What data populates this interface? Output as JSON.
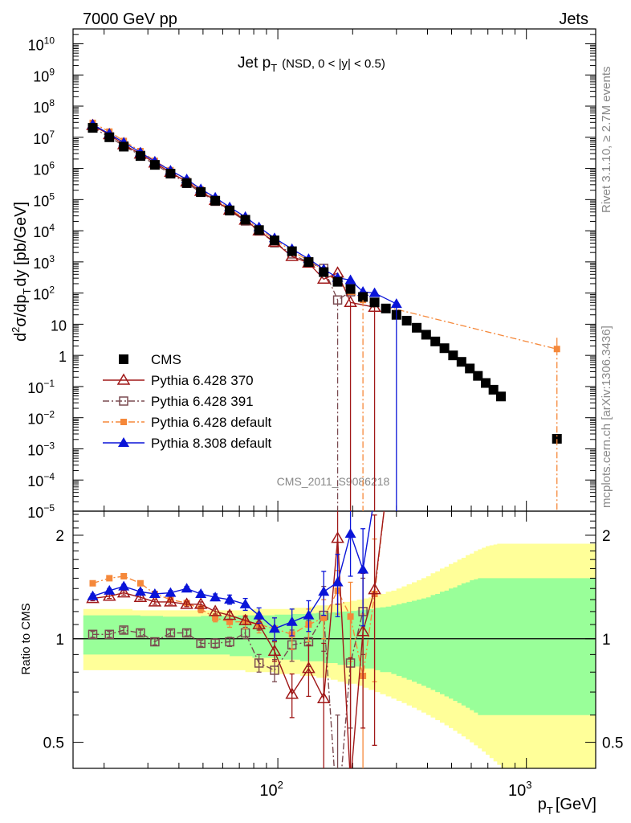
{
  "header": {
    "left": "7000 GeV pp",
    "right": "Jets"
  },
  "side_labels": {
    "rivet": "Rivet 3.1.10, ≥ 2.7M events",
    "mcplots": "mcplots.cern.ch [arXiv:1306.3436]"
  },
  "colors": {
    "cms": "#000000",
    "py370": "#a01818",
    "py391": "#7a4a50",
    "pydef": "#f5883a",
    "py8": "#0a14d8",
    "band_inner": "#99ff99",
    "band_outer": "#ffff99"
  },
  "chart_data": [
    {
      "type": "line",
      "name": "main",
      "title": "Jet p_T (NSD, 0 < |y| < 0.5)",
      "title_main": "Jet p",
      "title_sub": "T",
      "title_extra": "(NSD,   0 < |y| < 0.5)",
      "ylabel": "d²σ/dp_T dy [pb/GeV]",
      "xscale": "log",
      "yscale": "log",
      "xlim": [
        15,
        1900
      ],
      "ylim": [
        1e-05,
        30000000000.0
      ],
      "yticks": [
        {
          "v": 10000000000.0,
          "m": "10",
          "e": "10"
        },
        {
          "v": 1000000000.0,
          "m": "10",
          "e": "9"
        },
        {
          "v": 100000000.0,
          "m": "10",
          "e": "8"
        },
        {
          "v": 10000000.0,
          "m": "10",
          "e": "7"
        },
        {
          "v": 1000000.0,
          "m": "10",
          "e": "6"
        },
        {
          "v": 100000.0,
          "m": "10",
          "e": "5"
        },
        {
          "v": 10000.0,
          "m": "10",
          "e": "4"
        },
        {
          "v": 1000.0,
          "m": "10",
          "e": "3"
        },
        {
          "v": 100,
          "m": "10",
          "e": "2"
        },
        {
          "v": 10,
          "m": "10",
          "e": ""
        },
        {
          "v": 1,
          "m": "1",
          "e": ""
        },
        {
          "v": 0.1,
          "m": "10",
          "e": "−1"
        },
        {
          "v": 0.01,
          "m": "10",
          "e": "−2"
        },
        {
          "v": 0.001,
          "m": "10",
          "e": "−3"
        },
        {
          "v": 0.0001,
          "m": "10",
          "e": "−4"
        },
        {
          "v": 1e-05,
          "m": "10",
          "e": "−5"
        }
      ],
      "watermark": "CMS_2011_S9086218",
      "legend_position": "bottom-left",
      "series": [
        {
          "name": "CMS",
          "key": "cms",
          "marker": "square-filled",
          "x": [
            18,
            21,
            24,
            28,
            32,
            37,
            43,
            49,
            56,
            64,
            74,
            84,
            97,
            114,
            133,
            153,
            174,
            196,
            220,
            245,
            272,
            300,
            330,
            362,
            395,
            430,
            468,
            507,
            548,
            592,
            638,
            686,
            737,
            790,
            1327
          ],
          "y": [
            20000000.0,
            10000000.0,
            5000000.0,
            2500000.0,
            1300000.0,
            680000.0,
            340000.0,
            175000.0,
            92000.0,
            45000.0,
            22500.0,
            10500.0,
            4900.0,
            2200.0,
            990,
            470,
            230,
            135,
            75,
            50,
            32,
            20,
            13,
            7.7,
            4.6,
            2.8,
            1.7,
            1.0,
            0.62,
            0.38,
            0.22,
            0.13,
            0.079,
            0.048,
            0.0021
          ]
        },
        {
          "name": "Pythia 6.428 370",
          "key": "py370",
          "marker": "triangle-open",
          "dash": "",
          "x": [
            18,
            21,
            24,
            28,
            32,
            37,
            43,
            49,
            56,
            64,
            74,
            84,
            97,
            114,
            133,
            153,
            174,
            196,
            220,
            245
          ],
          "y": [
            24000000.0,
            12200000.0,
            5800000.0,
            2900000.0,
            1500000.0,
            750000.0,
            370000.0,
            185000.0,
            94000.0,
            46000.0,
            22000.0,
            10000.0,
            4300.0,
            1500.0,
            920,
            280,
            440,
            50,
            null,
            35
          ]
        },
        {
          "name": "Pythia 6.428 391",
          "key": "py391",
          "marker": "square-open",
          "dash": "8,3,2,3",
          "x": [
            18,
            21,
            24,
            28,
            32,
            37,
            43,
            49,
            56,
            64,
            74,
            84,
            97,
            114,
            133,
            153,
            174,
            196,
            220,
            245
          ],
          "y": [
            20500000.0,
            10200000.0,
            5300000.0,
            2650000.0,
            1300000.0,
            690000.0,
            330000.0,
            170000.0,
            88000.0,
            43500.0,
            20500.0,
            9800.0,
            4100.0,
            1800.0,
            950,
            620,
            60,
            110,
            null,
            null
          ]
        },
        {
          "name": "Pythia 6.428 default",
          "key": "pydef",
          "marker": "square-filled-small",
          "dash": "8,3,2,3",
          "x": [
            18,
            21,
            24,
            28,
            32,
            37,
            43,
            49,
            56,
            64,
            74,
            84,
            97,
            114,
            133,
            153,
            174,
            196,
            220,
            245,
            1327
          ],
          "y": [
            29000000.0,
            15200000.0,
            7600000.0,
            3600000.0,
            1750000.0,
            880000.0,
            420000.0,
            210000.0,
            105000.0,
            50000.0,
            24000.0,
            11500.0,
            5200.0,
            2250.0,
            1100.0,
            540,
            220,
            110,
            60,
            45,
            1.6
          ]
        },
        {
          "name": "Pythia 8.308 default",
          "key": "py8",
          "marker": "triangle-filled",
          "dash": "",
          "x": [
            18,
            21,
            24,
            28,
            32,
            37,
            43,
            49,
            56,
            64,
            74,
            84,
            97,
            114,
            133,
            153,
            174,
            196,
            220,
            245,
            300
          ],
          "y": [
            25500000.0,
            13000000.0,
            6800000.0,
            3300000.0,
            1670000.0,
            860000.0,
            450000.0,
            217000.0,
            117000.0,
            57000.0,
            28000.0,
            13000.0,
            5800.0,
            2600.0,
            1250.0,
            580,
            310,
            260,
            110,
            100,
            45
          ]
        }
      ]
    },
    {
      "type": "line",
      "name": "ratio",
      "ylabel": "Ratio to CMS",
      "xlabel": "p_T [GeV]",
      "xscale": "log",
      "yscale": "log",
      "xlim": [
        15,
        1900
      ],
      "ylim": [
        0.42,
        2.35
      ],
      "xticks": [
        {
          "v": 100,
          "m": "10",
          "e": "2"
        },
        {
          "v": 1000,
          "m": "10",
          "e": "3"
        }
      ],
      "yticks": [
        {
          "v": 0.5,
          "label": "0.5"
        },
        {
          "v": 1,
          "label": "1"
        },
        {
          "v": 2,
          "label": "2"
        }
      ],
      "band": {
        "edges": [
          16.5,
          18,
          19.5,
          21,
          22.5,
          24,
          26,
          28,
          30,
          32,
          34.5,
          37,
          40,
          43,
          46,
          49,
          52.5,
          56,
          60,
          64,
          69,
          74,
          79,
          84,
          90,
          97,
          105,
          114,
          123,
          133,
          143,
          153,
          163,
          174,
          185,
          196,
          208,
          220,
          232,
          245,
          258,
          272,
          286,
          300,
          315,
          330,
          346,
          362,
          378,
          395,
          412,
          430,
          449,
          468,
          487,
          507,
          527,
          548,
          570,
          592,
          615,
          638,
          662,
          686,
          711,
          737,
          763,
          790,
          950,
          1900
        ],
        "inner_up": [
          1.17,
          1.17,
          1.17,
          1.17,
          1.17,
          1.17,
          1.17,
          1.165,
          1.165,
          1.165,
          1.16,
          1.16,
          1.16,
          1.16,
          1.16,
          1.165,
          1.165,
          1.165,
          1.165,
          1.165,
          1.17,
          1.17,
          1.17,
          1.17,
          1.17,
          1.175,
          1.175,
          1.18,
          1.18,
          1.185,
          1.19,
          1.19,
          1.195,
          1.2,
          1.2,
          1.205,
          1.21,
          1.215,
          1.22,
          1.23,
          1.235,
          1.24,
          1.25,
          1.26,
          1.27,
          1.28,
          1.29,
          1.3,
          1.31,
          1.32,
          1.34,
          1.35,
          1.37,
          1.38,
          1.4,
          1.41,
          1.43,
          1.45,
          1.46,
          1.48,
          1.49,
          1.5,
          1.5,
          1.5,
          1.5,
          1.5,
          1.5,
          1.5,
          1.5
        ],
        "inner_dn": [
          0.9,
          0.9,
          0.9,
          0.9,
          0.9,
          0.9,
          0.9,
          0.9,
          0.9,
          0.9,
          0.9,
          0.9,
          0.9,
          0.9,
          0.9,
          0.9,
          0.9,
          0.9,
          0.9,
          0.89,
          0.89,
          0.89,
          0.88,
          0.88,
          0.88,
          0.87,
          0.87,
          0.87,
          0.86,
          0.86,
          0.86,
          0.85,
          0.85,
          0.84,
          0.84,
          0.83,
          0.83,
          0.82,
          0.82,
          0.81,
          0.8,
          0.8,
          0.79,
          0.78,
          0.77,
          0.76,
          0.75,
          0.74,
          0.73,
          0.72,
          0.71,
          0.7,
          0.69,
          0.68,
          0.67,
          0.66,
          0.65,
          0.64,
          0.63,
          0.62,
          0.61,
          0.6,
          0.6,
          0.6,
          0.6,
          0.6,
          0.6,
          0.6,
          0.6
        ],
        "outer_up": [
          1.22,
          1.22,
          1.22,
          1.22,
          1.22,
          1.22,
          1.21,
          1.21,
          1.21,
          1.21,
          1.21,
          1.21,
          1.21,
          1.21,
          1.21,
          1.21,
          1.21,
          1.21,
          1.21,
          1.21,
          1.21,
          1.21,
          1.22,
          1.22,
          1.22,
          1.22,
          1.22,
          1.23,
          1.23,
          1.24,
          1.25,
          1.25,
          1.26,
          1.27,
          1.28,
          1.29,
          1.3,
          1.31,
          1.32,
          1.34,
          1.35,
          1.37,
          1.38,
          1.4,
          1.42,
          1.44,
          1.46,
          1.48,
          1.5,
          1.52,
          1.55,
          1.57,
          1.6,
          1.62,
          1.65,
          1.67,
          1.7,
          1.72,
          1.75,
          1.77,
          1.8,
          1.82,
          1.84,
          1.86,
          1.87,
          1.88,
          1.89,
          1.89,
          1.89
        ],
        "outer_dn": [
          0.81,
          0.81,
          0.81,
          0.81,
          0.81,
          0.81,
          0.81,
          0.81,
          0.81,
          0.81,
          0.81,
          0.81,
          0.81,
          0.81,
          0.81,
          0.81,
          0.81,
          0.81,
          0.81,
          0.81,
          0.81,
          0.8,
          0.8,
          0.8,
          0.8,
          0.79,
          0.79,
          0.79,
          0.78,
          0.78,
          0.77,
          0.77,
          0.76,
          0.75,
          0.74,
          0.74,
          0.73,
          0.72,
          0.71,
          0.7,
          0.69,
          0.68,
          0.67,
          0.66,
          0.65,
          0.64,
          0.63,
          0.62,
          0.61,
          0.6,
          0.59,
          0.58,
          0.57,
          0.56,
          0.55,
          0.54,
          0.53,
          0.52,
          0.51,
          0.5,
          0.49,
          0.48,
          0.47,
          0.46,
          0.45,
          0.44,
          0.43,
          0.42,
          0.42
        ]
      },
      "series": [
        {
          "key": "py370",
          "marker": "triangle-open",
          "dash": "",
          "x": [
            18,
            21,
            24,
            28,
            32,
            37,
            43,
            49,
            56,
            64,
            74,
            84,
            97,
            114,
            133,
            153,
            174,
            196,
            220,
            245,
            272
          ],
          "y": [
            1.31,
            1.33,
            1.36,
            1.32,
            1.28,
            1.28,
            1.26,
            1.26,
            1.2,
            1.17,
            1.13,
            1.1,
            0.92,
            0.69,
            0.82,
            0.67,
            1.96,
            0.38,
            1.05,
            1.39,
            2.6
          ],
          "err": [
            0.02,
            0.02,
            0.02,
            0.02,
            0.02,
            0.02,
            0.02,
            0.02,
            0.02,
            0.03,
            0.03,
            0.04,
            0.06,
            0.1,
            0.14,
            0.3,
            0.7,
            0.5,
            0.5,
            0.9,
            0
          ]
        },
        {
          "key": "py391",
          "marker": "square-open",
          "dash": "8,3,2,3",
          "x": [
            18,
            21,
            24,
            28,
            32,
            37,
            43,
            49,
            56,
            64,
            74,
            84,
            97,
            114,
            133,
            153,
            174,
            196,
            220
          ],
          "y": [
            1.03,
            1.03,
            1.06,
            1.04,
            0.98,
            1.04,
            1.04,
            0.97,
            0.97,
            0.98,
            1.04,
            0.85,
            0.81,
            0.96,
            0.98,
            1.17,
            0.3,
            0.85,
            1.2
          ],
          "err": [
            0.02,
            0.02,
            0.02,
            0.02,
            0.02,
            0.02,
            0.02,
            0.02,
            0.03,
            0.03,
            0.04,
            0.05,
            0.06,
            0.1,
            0.15,
            0.25,
            0.3,
            0.3,
            0.3
          ]
        },
        {
          "key": "pydef",
          "marker": "square-filled-small",
          "dash": "8,3,2,3",
          "x": [
            18,
            21,
            24,
            28,
            32,
            37,
            43,
            49,
            56,
            64,
            74,
            84,
            97,
            114,
            133,
            153,
            174,
            196,
            220,
            245,
            272
          ],
          "y": [
            1.45,
            1.5,
            1.52,
            1.45,
            1.35,
            1.3,
            1.27,
            1.22,
            1.15,
            1.12,
            1.12,
            1.1,
            1.07,
            1.03,
            1.1,
            1.15,
            1.38,
            1.16,
            0.78,
            1.35,
            2.6
          ],
          "err": [
            0.02,
            0.02,
            0.02,
            0.02,
            0.02,
            0.02,
            0.02,
            0.03,
            0.03,
            0.04,
            0.05,
            0.06,
            0.08,
            0.1,
            0.12,
            0.15,
            0.2,
            0.3,
            0.4,
            0.6,
            0
          ]
        },
        {
          "key": "py8",
          "marker": "triangle-filled",
          "dash": "",
          "x": [
            18,
            21,
            24,
            28,
            32,
            37,
            43,
            49,
            56,
            64,
            74,
            84,
            97,
            114,
            133,
            153,
            174,
            196,
            220,
            245
          ],
          "y": [
            1.33,
            1.38,
            1.42,
            1.37,
            1.35,
            1.36,
            1.4,
            1.35,
            1.32,
            1.3,
            1.26,
            1.17,
            1.07,
            1.12,
            1.17,
            1.37,
            1.46,
            2.02,
            1.59,
            2.6
          ],
          "err": [
            0.02,
            0.02,
            0.02,
            0.02,
            0.02,
            0.02,
            0.02,
            0.02,
            0.03,
            0.04,
            0.05,
            0.06,
            0.08,
            0.1,
            0.12,
            0.2,
            0.3,
            0.5,
            0.5,
            0
          ]
        }
      ]
    }
  ]
}
